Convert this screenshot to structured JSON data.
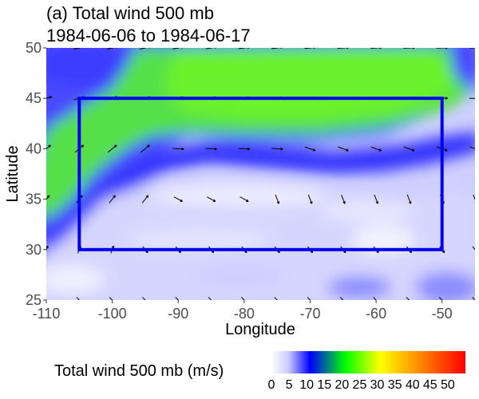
{
  "title_line1": "(a) Total wind 500 mb",
  "title_line2": "1984-06-06 to 1984-06-17",
  "chart_data": {
    "type": "heatmap",
    "xlabel": "Longitude",
    "ylabel": "Latitude",
    "xlim": [
      -110,
      -45
    ],
    "ylim": [
      25,
      50
    ],
    "x_ticks": [
      -110,
      -100,
      -90,
      -80,
      -70,
      -60,
      -50
    ],
    "y_ticks": [
      25,
      30,
      35,
      40,
      45,
      50
    ],
    "x_tick_labels": [
      "-110",
      "-100",
      "-90",
      "-80",
      "-70",
      "-60",
      "-50"
    ],
    "y_tick_labels": [
      "25",
      "30",
      "35",
      "40",
      "45",
      "50"
    ],
    "box": {
      "lon_min": -105,
      "lon_max": -50,
      "lat_min": 30,
      "lat_max": 45,
      "color": "#0000ee"
    },
    "colorbar": {
      "title": "Total wind 500 mb (m/s)",
      "range": [
        0,
        55
      ],
      "ticks": [
        0,
        5,
        10,
        15,
        20,
        25,
        30,
        35,
        40,
        45,
        50
      ],
      "tick_labels": [
        "0",
        "5",
        "10",
        "15",
        "20",
        "25",
        "30",
        "35",
        "40",
        "45",
        "50"
      ],
      "colors": [
        "#ffffff",
        "#c8c8ff",
        "#0000ff",
        "#00ff00",
        "#ffff00",
        "#ff8000",
        "#ff0000"
      ]
    },
    "vectors_shown": true
  }
}
